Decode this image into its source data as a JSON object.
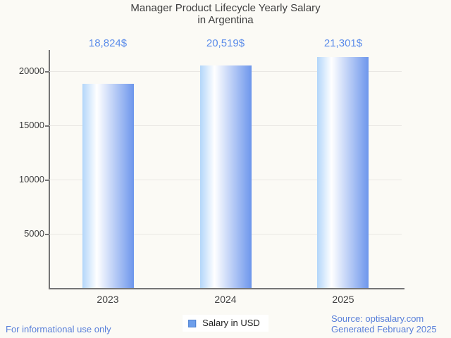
{
  "chart_data": {
    "type": "bar",
    "title": "Manager Product Lifecycle Yearly Salary",
    "subtitle": "in Argentina",
    "categories": [
      "2023",
      "2024",
      "2025"
    ],
    "values": [
      18824,
      20519,
      21301
    ],
    "value_labels": [
      "18,824$",
      "20,519$",
      "21,301$"
    ],
    "series_name": "Salary in USD",
    "xlabel": "",
    "ylabel": "",
    "ylim": [
      0,
      21950
    ],
    "yticks": [
      5000,
      10000,
      15000,
      20000
    ],
    "grid": true,
    "legend_position": "bottom-center"
  },
  "legend": {
    "label": "Salary in USD",
    "swatch": "blue-square-icon"
  },
  "footer": {
    "disclaimer": "For informational use only",
    "source": "Source: optisalary.com",
    "generated": "Generated February 2025"
  },
  "colors": {
    "background": "#fbfaf5",
    "title_text": "#3f3f3f",
    "axis_text": "#3f3f3f",
    "axis_line": "#757575",
    "gridline": "#e9e7e3",
    "value_text": "#5b8cea",
    "footer_text": "#5a80da",
    "bar_light": "#b3d6fa",
    "bar_white": "#ffffff",
    "bar_dark": "#6d96ec",
    "legend_swatch_fill": "#6d9eeb",
    "legend_swatch_border": "#4e80d0",
    "legend_bg": "#ffffff",
    "legend_text": "#1f1f1f"
  }
}
